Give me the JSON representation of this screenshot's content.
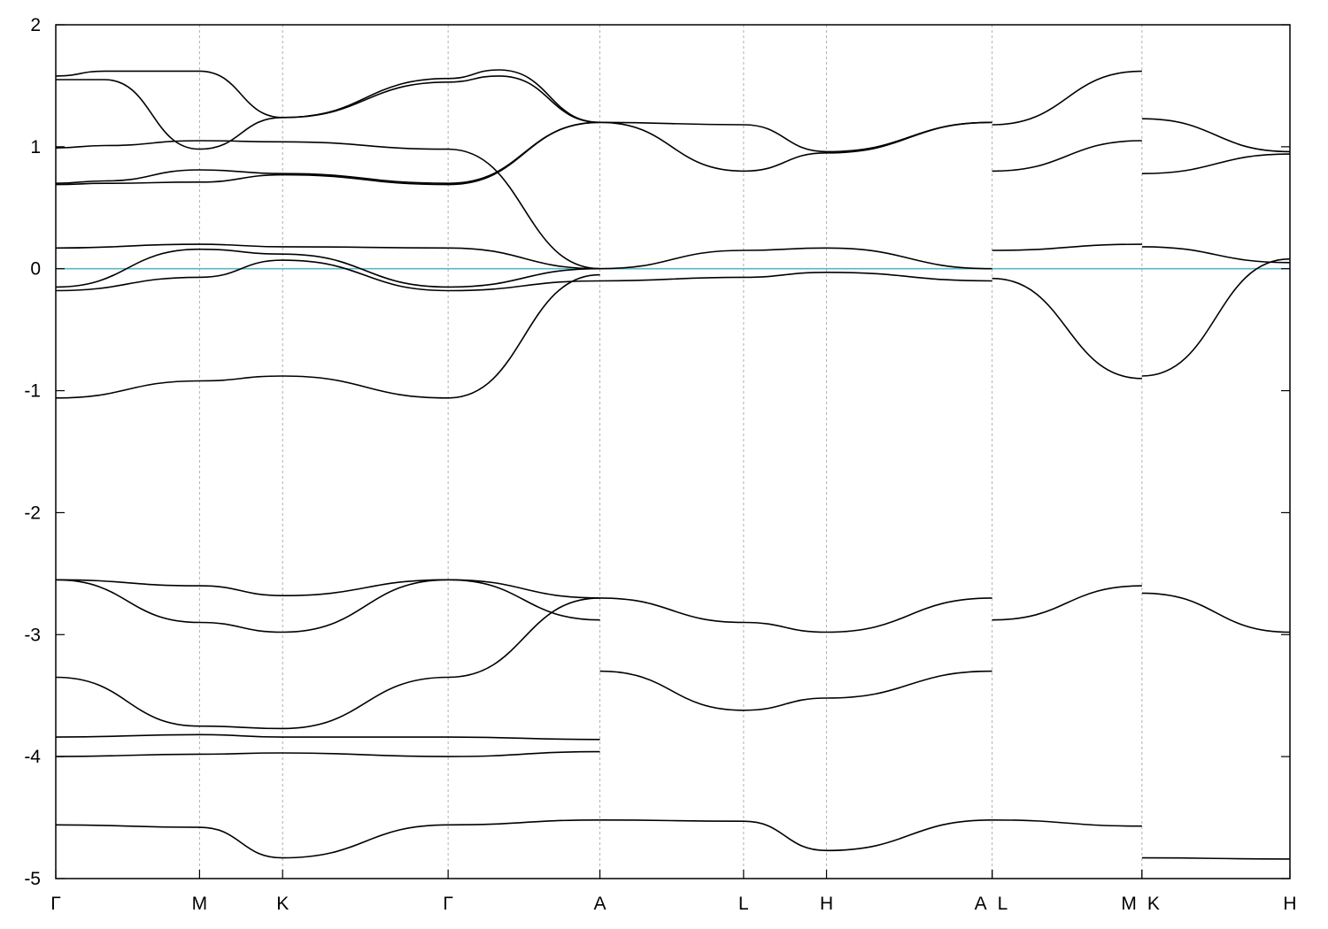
{
  "chart_data": {
    "type": "line",
    "title": "",
    "xlabel": "",
    "ylabel": "",
    "ylim": [
      -5,
      2
    ],
    "yticks": [
      "2",
      "1",
      "0",
      "-1",
      "-2",
      "-3",
      "-4",
      "-5"
    ],
    "ytick_values": [
      2,
      1,
      0,
      -1,
      -2,
      -3,
      -4,
      -5
    ],
    "xlim": [
      0,
      1
    ],
    "high_symmetry_points": [
      {
        "label": "Γ",
        "x": 0.0
      },
      {
        "label": "M",
        "x": 0.1165
      },
      {
        "label": "K",
        "x": 0.1838
      },
      {
        "label": "Γ",
        "x": 0.3179
      },
      {
        "label": "A",
        "x": 0.4409
      },
      {
        "label": "L",
        "x": 0.5573
      },
      {
        "label": "H",
        "x": 0.6245
      },
      {
        "label": "A",
        "x": 0.7587
      },
      {
        "label": "L",
        "x": 0.7587
      },
      {
        "label": "M",
        "x": 0.8801
      },
      {
        "label": "K",
        "x": 0.8801
      },
      {
        "label": "H",
        "x": 1.0
      }
    ],
    "x_tick_labels": [
      "Γ",
      "M",
      "K",
      "Γ",
      "A",
      "L",
      "H",
      "A",
      "L",
      "M",
      "K",
      "H"
    ],
    "grid": "vertical dashed lines at high-symmetry points",
    "fermi_level": {
      "y": 0,
      "color": "#5fb4c8"
    },
    "line_color": "#000000",
    "bands": [
      {
        "x": [
          0,
          0.0395,
          0.1165,
          0.1838,
          0.3179,
          0.3591,
          0.4409
        ],
        "y": [
          1.58,
          1.62,
          1.62,
          1.24,
          1.56,
          1.63,
          1.2
        ]
      },
      {
        "x": [
          0,
          0.0395,
          0.1165,
          0.1838,
          0.3179,
          0.3591,
          0.4409
        ],
        "y": [
          1.55,
          1.55,
          0.98,
          1.24,
          1.53,
          1.58,
          1.2
        ]
      },
      {
        "x": [
          0,
          0.0395,
          0.1165,
          0.1838,
          0.3179,
          0.4409
        ],
        "y": [
          0.99,
          1.01,
          1.05,
          1.04,
          0.98,
          0.0
        ]
      },
      {
        "x": [
          0,
          0.0395,
          0.1165,
          0.1838,
          0.3179,
          0.4409
        ],
        "y": [
          0.7,
          0.72,
          0.81,
          0.78,
          0.7,
          1.2
        ]
      },
      {
        "x": [
          0,
          0.0395,
          0.1165,
          0.1838,
          0.3179,
          0.4409
        ],
        "y": [
          0.69,
          0.7,
          0.71,
          0.77,
          0.69,
          1.2
        ]
      },
      {
        "x": [
          0,
          0.1165,
          0.1838,
          0.3179,
          0.4409
        ],
        "y": [
          0.17,
          0.2,
          0.18,
          0.17,
          0.0
        ]
      },
      {
        "x": [
          0,
          0.1165,
          0.1838,
          0.3179,
          0.4409
        ],
        "y": [
          -0.15,
          0.16,
          0.12,
          -0.15,
          0.0
        ]
      },
      {
        "x": [
          0,
          0.1165,
          0.1838,
          0.3179,
          0.4409
        ],
        "y": [
          -0.18,
          -0.07,
          0.07,
          -0.18,
          -0.1
        ]
      },
      {
        "x": [
          0,
          0.1165,
          0.1838,
          0.3179,
          0.4409
        ],
        "y": [
          -1.06,
          -0.92,
          -0.88,
          -1.06,
          -0.05
        ]
      },
      {
        "x": [
          0.4409,
          0.5573,
          0.6245,
          0.7587
        ],
        "y": [
          1.2,
          1.18,
          0.96,
          1.2
        ]
      },
      {
        "x": [
          0.4409,
          0.5573,
          0.6245,
          0.7587
        ],
        "y": [
          1.2,
          0.8,
          0.95,
          1.2
        ]
      },
      {
        "x": [
          0.4409,
          0.5573,
          0.6245,
          0.7587
        ],
        "y": [
          0.0,
          0.15,
          0.17,
          0.0
        ]
      },
      {
        "x": [
          0.4409,
          0.5573,
          0.6245,
          0.7587
        ],
        "y": [
          -0.1,
          -0.07,
          -0.03,
          -0.1
        ]
      },
      {
        "x": [
          0.7587,
          0.8801
        ],
        "y": [
          1.18,
          1.62
        ]
      },
      {
        "x": [
          0.7587,
          0.8801
        ],
        "y": [
          0.8,
          1.05
        ]
      },
      {
        "x": [
          0.7587,
          0.8801
        ],
        "y": [
          0.15,
          0.2
        ]
      },
      {
        "x": [
          0.7587,
          0.8801
        ],
        "y": [
          -0.08,
          -0.9
        ]
      },
      {
        "x": [
          0.8801,
          1.0
        ],
        "y": [
          1.23,
          0.96
        ]
      },
      {
        "x": [
          0.8801,
          1.0
        ],
        "y": [
          0.78,
          0.94
        ]
      },
      {
        "x": [
          0.8801,
          1.0
        ],
        "y": [
          0.18,
          0.05
        ]
      },
      {
        "x": [
          0.8801,
          1.0
        ],
        "y": [
          -0.88,
          0.08
        ]
      },
      {
        "x": [
          0,
          0.1165,
          0.1838,
          0.3179,
          0.4409
        ],
        "y": [
          -2.55,
          -2.6,
          -2.68,
          -2.55,
          -2.7
        ]
      },
      {
        "x": [
          0,
          0.1165,
          0.1838,
          0.3179,
          0.4409
        ],
        "y": [
          -2.55,
          -2.9,
          -2.98,
          -2.55,
          -2.88
        ]
      },
      {
        "x": [
          0,
          0.1165,
          0.1838,
          0.3179,
          0.4409
        ],
        "y": [
          -3.35,
          -3.75,
          -3.77,
          -3.35,
          -2.7
        ]
      },
      {
        "x": [
          0,
          0.1165,
          0.1838,
          0.3179,
          0.4409
        ],
        "y": [
          -3.84,
          -3.82,
          -3.84,
          -3.84,
          -3.86
        ]
      },
      {
        "x": [
          0,
          0.1165,
          0.1838,
          0.3179,
          0.4409
        ],
        "y": [
          -4.0,
          -3.98,
          -3.97,
          -4.0,
          -3.96
        ]
      },
      {
        "x": [
          0,
          0.1165,
          0.1838,
          0.3179,
          0.4409
        ],
        "y": [
          -4.56,
          -4.58,
          -4.83,
          -4.56,
          -4.52
        ]
      },
      {
        "x": [
          0.4409,
          0.5573,
          0.6245,
          0.7587
        ],
        "y": [
          -2.7,
          -2.9,
          -2.98,
          -2.7
        ]
      },
      {
        "x": [
          0.4409,
          0.5573,
          0.6245,
          0.7587
        ],
        "y": [
          -3.3,
          -3.62,
          -3.52,
          -3.3
        ]
      },
      {
        "x": [
          0.4409,
          0.5573,
          0.6245,
          0.7587
        ],
        "y": [
          -4.52,
          -4.53,
          -4.77,
          -4.52
        ]
      },
      {
        "x": [
          0.7587,
          0.8801
        ],
        "y": [
          -2.88,
          -2.6
        ]
      },
      {
        "x": [
          0.7587,
          0.8801
        ],
        "y": [
          -4.52,
          -4.57
        ]
      },
      {
        "x": [
          0.8801,
          1.0
        ],
        "y": [
          -2.66,
          -2.98
        ]
      },
      {
        "x": [
          0.8801,
          1.0
        ],
        "y": [
          -4.83,
          -4.84
        ]
      }
    ]
  }
}
